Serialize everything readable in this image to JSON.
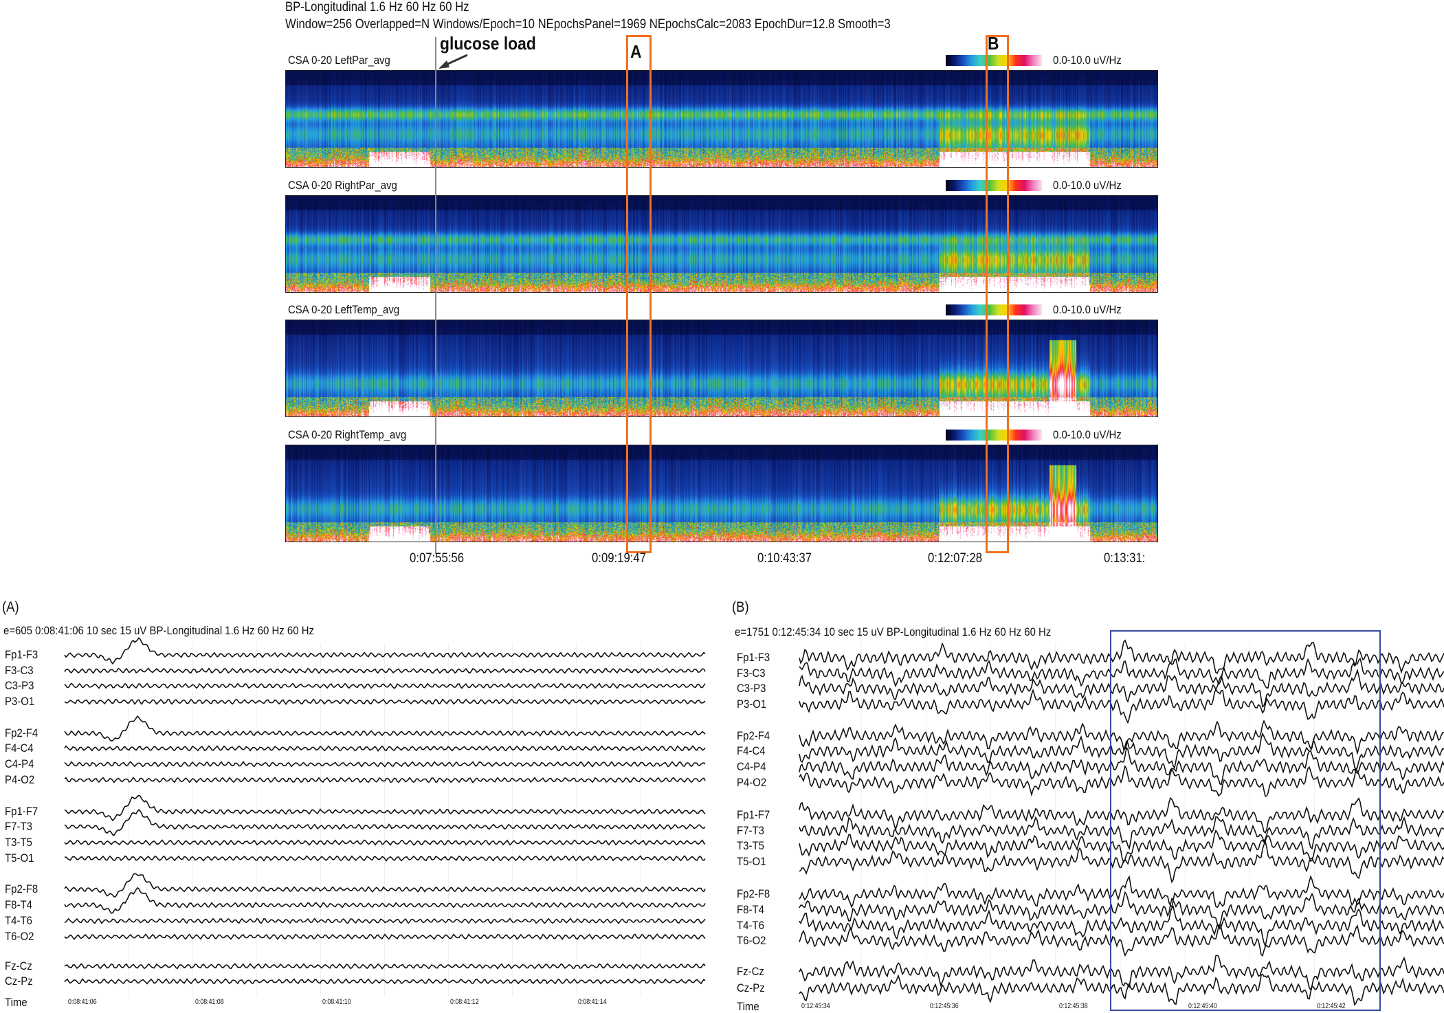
{
  "csa": {
    "header_line1": "BP-Longitudinal  1.6 Hz  60 Hz  60 Hz",
    "header_line2": "Window=256 Overlapped=N Windows/Epoch=10 NEpochsPanel=1969 NEpochsCalc=2083 EpochDur=12.8 Smooth=3",
    "event_label": "glucose load",
    "marker_a": "A",
    "marker_b": "B",
    "panels": [
      {
        "label": "CSA 0-20 LeftPar_avg",
        "scale": "0.0-10.0 uV/Hz"
      },
      {
        "label": "CSA 0-20 RightPar_avg",
        "scale": "0.0-10.0 uV/Hz"
      },
      {
        "label": "CSA 0-20 LeftTemp_avg",
        "scale": "0.0-10.0 uV/Hz"
      },
      {
        "label": "CSA 0-20 RightTemp_avg",
        "scale": "0.0-10.0 uV/Hz"
      }
    ],
    "time_ticks": [
      "0:07:55:56",
      "0:09:19:47",
      "0:10:43:37",
      "0:12:07:28",
      "0:13:31:"
    ],
    "colormap": [
      "#000018",
      "#0a1a70",
      "#1a4ec0",
      "#23a0e0",
      "#50c040",
      "#ffd000",
      "#ff3020",
      "#f080c0",
      "#ffffff"
    ]
  },
  "eeg_a": {
    "panel_label": "(A)",
    "header": "e=605  0:08:41:06  10 sec  15 uV  BP-Longitudinal  1.6 Hz  60 Hz  60 Hz",
    "channels": [
      "Fp1-F3",
      "F3-C3",
      "C3-P3",
      "P3-O1",
      "Fp2-F4",
      "F4-C4",
      "C4-P4",
      "P4-O2",
      "Fp1-F7",
      "F7-T3",
      "T3-T5",
      "T5-O1",
      "Fp2-F8",
      "F8-T4",
      "T4-T6",
      "T6-O2",
      "Fz-Cz",
      "Cz-Pz"
    ],
    "time_label": "Time",
    "time_ticks": [
      "0:08:41:06",
      "0:08:41:08",
      "0:08:41:10",
      "0:08:41:12",
      "0:08:41:14"
    ]
  },
  "eeg_b": {
    "panel_label": "(B)",
    "header": "e=1751  0:12:45:34  10 sec  15 uV  BP-Longitudinal  1.6 Hz  60 Hz  60 Hz",
    "channels": [
      "Fp1-F3",
      "F3-C3",
      "C3-P3",
      "P3-O1",
      "Fp2-F4",
      "F4-C4",
      "C4-P4",
      "P4-O2",
      "Fp1-F7",
      "F7-T3",
      "T3-T5",
      "T5-O1",
      "Fp2-F8",
      "F8-T4",
      "T4-T6",
      "T6-O2",
      "Fz-Cz",
      "Cz-Pz"
    ],
    "time_label": "Time",
    "time_ticks": [
      "0:12:45:34",
      "0:12:45:36",
      "0:12:45:38",
      "0:12:45:40",
      "0:12:45:42"
    ]
  },
  "chart_data": {
    "type": "heatmap",
    "title": "BP-Longitudinal  1.6 Hz  60 Hz  60 Hz",
    "y_range_hz": [
      0,
      20
    ],
    "color_scale": "0.0-10.0 uV/Hz",
    "x_tick_labels": [
      "0:07:55:56",
      "0:09:19:47",
      "0:10:43:37",
      "0:12:07:28",
      "0:13:31:"
    ],
    "series": [
      "CSA 0-20 LeftPar_avg",
      "CSA 0-20 RightPar_avg",
      "CSA 0-20 LeftTemp_avg",
      "CSA 0-20 RightTemp_avg"
    ],
    "annotations": [
      "glucose load",
      "A",
      "B"
    ]
  }
}
